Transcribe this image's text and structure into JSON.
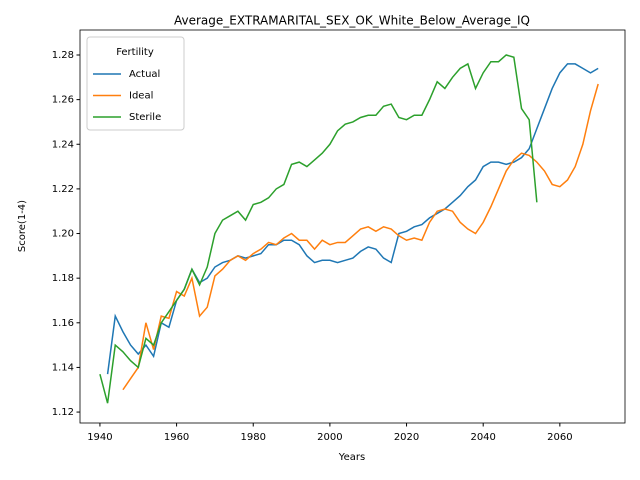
{
  "chart_data": {
    "type": "line",
    "title": "Average_EXTRAMARITAL_SEX_OK_White_Below_Average_IQ",
    "xlabel": "Years",
    "ylabel": "Score(1-4)",
    "legend_title": "Fertility",
    "legend": "upper left",
    "grid": false,
    "x": [
      1940,
      1942,
      1944,
      1946,
      1948,
      1950,
      1952,
      1954,
      1956,
      1958,
      1960,
      1962,
      1964,
      1966,
      1968,
      1970,
      1972,
      1974,
      1976,
      1978,
      1980,
      1982,
      1984,
      1986,
      1988,
      1990,
      1992,
      1994,
      1996,
      1998,
      2000,
      2002,
      2004,
      2006,
      2008,
      2010,
      2012,
      2014,
      2016,
      2018,
      2020,
      2022,
      2024,
      2026,
      2028,
      2030,
      2032,
      2034,
      2036,
      2038,
      2040,
      2042,
      2044,
      2046,
      2048,
      2050,
      2052,
      2054,
      2056,
      2058,
      2060,
      2062,
      2064,
      2066,
      2068,
      2070
    ],
    "series": [
      {
        "name": "Actual",
        "color": "#1f77b4",
        "values": [
          null,
          1.137,
          1.163,
          1.156,
          1.15,
          1.146,
          1.15,
          1.145,
          1.16,
          1.158,
          1.17,
          1.175,
          1.184,
          1.178,
          1.18,
          1.185,
          1.187,
          1.188,
          1.19,
          1.189,
          1.19,
          1.191,
          1.195,
          1.195,
          1.197,
          1.197,
          1.195,
          1.19,
          1.187,
          1.188,
          1.188,
          1.187,
          1.188,
          1.189,
          1.192,
          1.194,
          1.193,
          1.189,
          1.187,
          1.2,
          1.201,
          1.203,
          1.204,
          1.207,
          1.209,
          1.211,
          1.214,
          1.217,
          1.221,
          1.224,
          1.23,
          1.232,
          1.232,
          1.231,
          1.232,
          1.234,
          1.238,
          1.247,
          1.256,
          1.265,
          1.272,
          1.276,
          1.276,
          1.274,
          1.272,
          1.274
        ]
      },
      {
        "name": "Ideal",
        "color": "#ff7f0e",
        "values": [
          null,
          null,
          null,
          1.13,
          1.135,
          1.14,
          1.16,
          1.148,
          1.163,
          1.162,
          1.174,
          1.172,
          1.18,
          1.163,
          1.167,
          1.181,
          1.184,
          1.188,
          1.19,
          1.188,
          1.191,
          1.193,
          1.196,
          1.195,
          1.198,
          1.2,
          1.197,
          1.197,
          1.193,
          1.197,
          1.195,
          1.196,
          1.196,
          1.199,
          1.202,
          1.203,
          1.201,
          1.203,
          1.202,
          1.199,
          1.197,
          1.198,
          1.197,
          1.205,
          1.21,
          1.211,
          1.21,
          1.205,
          1.202,
          1.2,
          1.205,
          1.212,
          1.22,
          1.228,
          1.233,
          1.236,
          1.235,
          1.232,
          1.228,
          1.222,
          1.221,
          1.224,
          1.23,
          1.24,
          1.255,
          1.267
        ]
      },
      {
        "name": "Sterile",
        "color": "#2ca02c",
        "values": [
          1.137,
          1.124,
          1.15,
          1.147,
          1.143,
          1.14,
          1.153,
          1.15,
          1.16,
          1.165,
          1.17,
          1.175,
          1.184,
          1.177,
          1.185,
          1.2,
          1.206,
          1.208,
          1.21,
          1.206,
          1.213,
          1.214,
          1.216,
          1.22,
          1.222,
          1.231,
          1.232,
          1.23,
          1.233,
          1.236,
          1.24,
          1.246,
          1.249,
          1.25,
          1.252,
          1.253,
          1.253,
          1.257,
          1.258,
          1.252,
          1.251,
          1.253,
          1.253,
          1.26,
          1.268,
          1.265,
          1.27,
          1.274,
          1.276,
          1.265,
          1.272,
          1.277,
          1.277,
          1.28,
          1.279,
          1.256,
          1.251,
          1.214,
          null,
          null,
          null,
          null,
          null,
          null,
          null,
          null
        ]
      }
    ],
    "xlim": [
      1934.8,
      2077
    ],
    "xticks": [
      1940,
      1960,
      1980,
      2000,
      2020,
      2040,
      2060
    ],
    "ylim": [
      1.1151,
      1.2912
    ],
    "yticks": [
      1.12,
      1.14,
      1.16,
      1.18,
      {
        "value": 1.2,
        "label": "1.20"
      },
      1.22,
      1.24,
      1.26,
      1.28
    ]
  }
}
